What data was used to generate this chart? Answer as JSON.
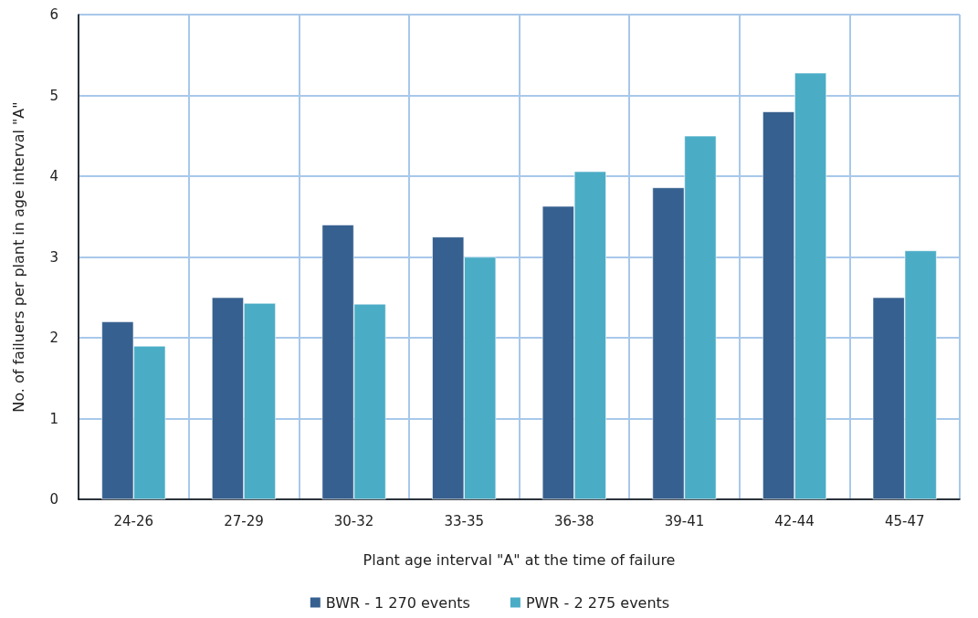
{
  "chart_data": {
    "type": "bar",
    "xlabel": "Plant age interval \"A\" at the time of failure",
    "ylabel": "No. of failuers per plant in age interval \"A\"",
    "categories": [
      "24-26",
      "27-29",
      "30-32",
      "33-35",
      "36-38",
      "39-41",
      "42-44",
      "45-47"
    ],
    "series": [
      {
        "name": "BWR - 1 270 events",
        "color": "#36608f",
        "values": [
          2.2,
          2.5,
          3.4,
          3.25,
          3.63,
          3.86,
          4.8,
          2.5
        ]
      },
      {
        "name": "PWR - 2 275 events",
        "color": "#4bacc6",
        "values": [
          1.9,
          2.43,
          2.42,
          3.0,
          4.06,
          4.5,
          5.28,
          3.08
        ]
      }
    ],
    "ylim": [
      0,
      6
    ],
    "yticks": [
      0,
      1,
      2,
      3,
      4,
      5,
      6
    ],
    "grid": true,
    "legend": "bottom"
  }
}
